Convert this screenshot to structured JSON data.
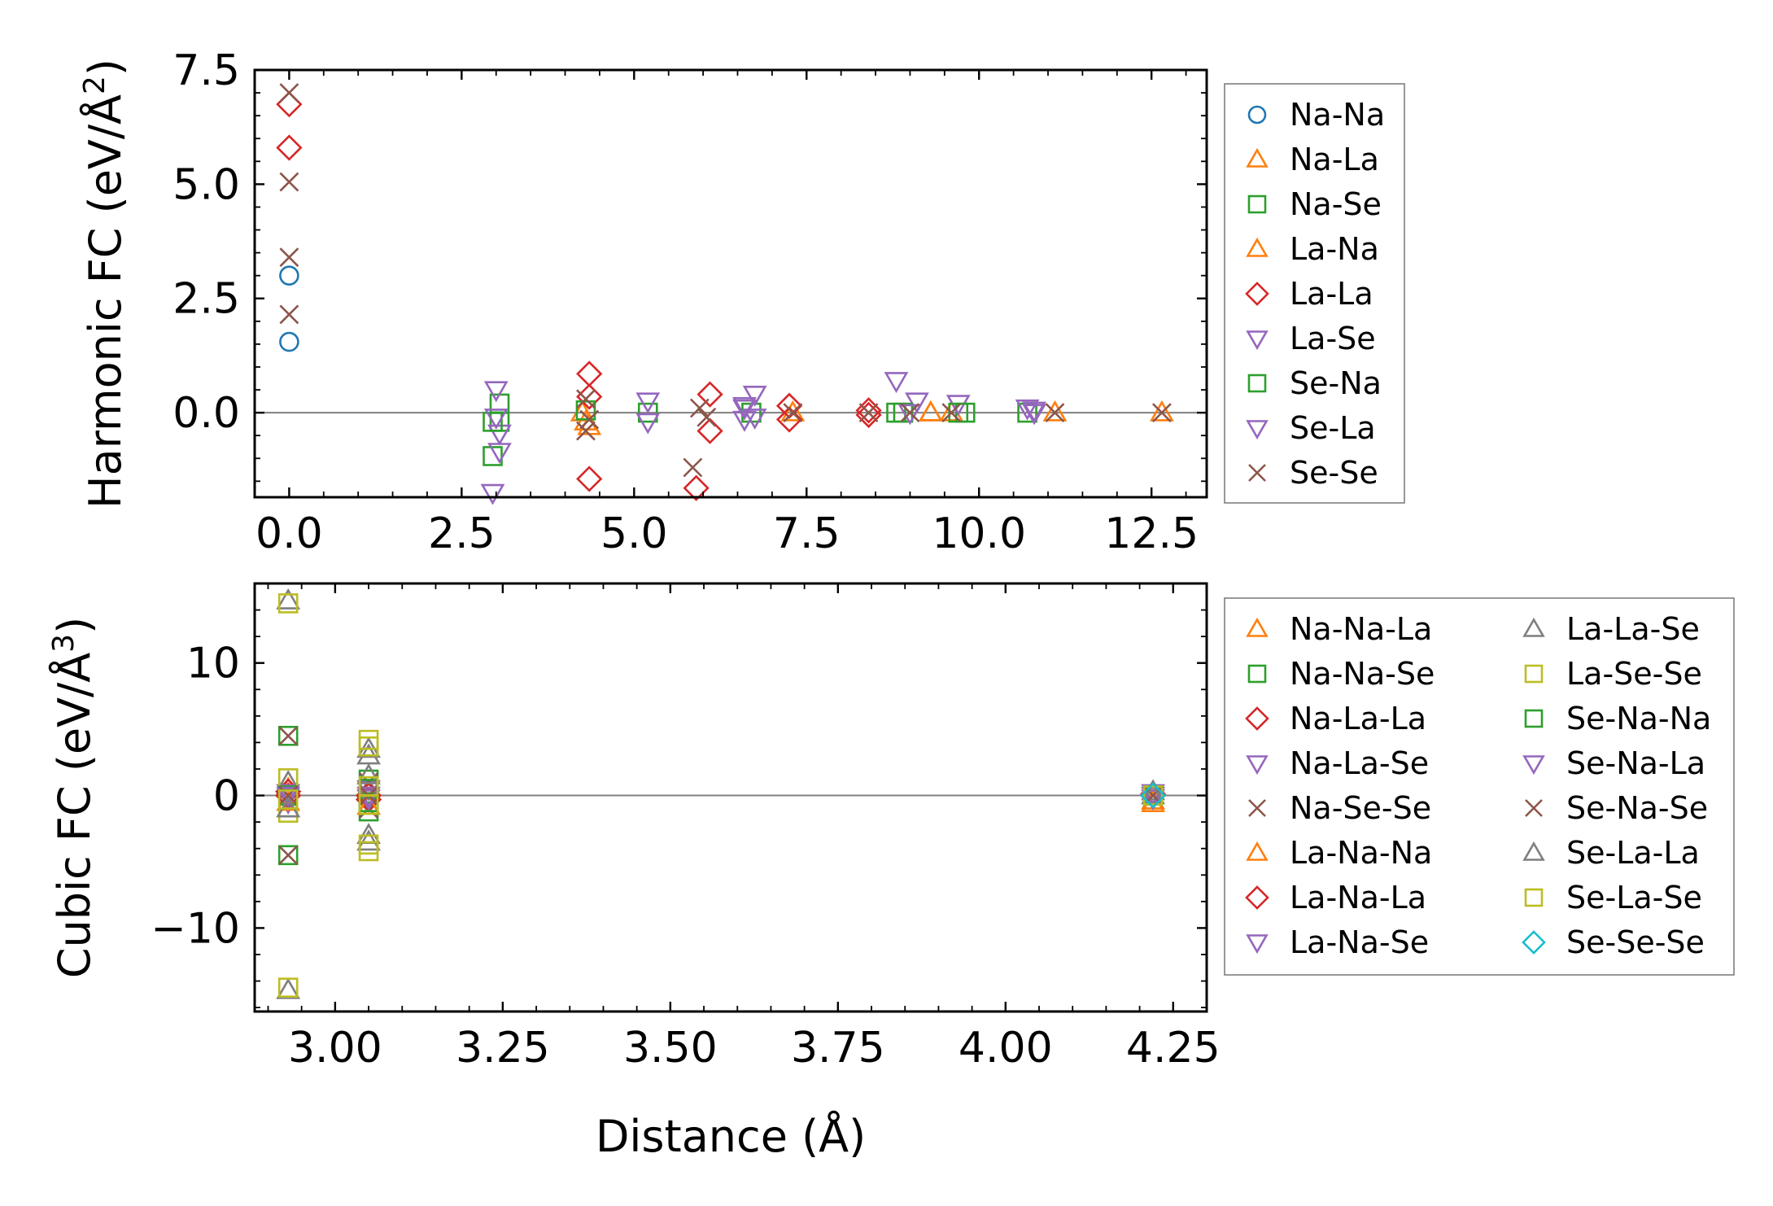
{
  "colors": {
    "tab_blue": "#1f77b4",
    "tab_orange": "#ff7f0e",
    "tab_green": "#2ca02c",
    "tab_red": "#d62728",
    "tab_purple": "#9467bd",
    "tab_brown": "#8c564b",
    "tab_gray": "#7f7f7f",
    "tab_olive": "#bcbd22",
    "tab_cyan": "#17becf",
    "zero_line": "#808080"
  },
  "chart_data": [
    {
      "type": "scatter",
      "id": "harmonic",
      "title": "",
      "xlabel": "",
      "ylabel": "Harmonic FC (eV/Å²)",
      "ylabel_parts": {
        "main": "Harmonic FC (eV/Å",
        "sup": "2",
        "end": ")"
      },
      "xlim": [
        -0.5,
        13.3
      ],
      "ylim": [
        -1.85,
        7.5
      ],
      "xticks": [
        0.0,
        2.5,
        5.0,
        7.5,
        10.0,
        12.5
      ],
      "xtick_labels": [
        "0.0",
        "2.5",
        "5.0",
        "7.5",
        "10.0",
        "12.5"
      ],
      "yticks": [
        0.0,
        2.5,
        5.0,
        7.5
      ],
      "ytick_labels": [
        "0.0",
        "2.5",
        "5.0",
        "7.5"
      ],
      "zero_line": true,
      "legend_location": "right-outside",
      "series": [
        {
          "name": "Na-Na",
          "marker": "circle",
          "color": "#1f77b4",
          "x": [
            0.0,
            0.0
          ],
          "y": [
            3.0,
            1.55
          ]
        },
        {
          "name": "Na-La",
          "marker": "triangle-up",
          "color": "#ff7f0e",
          "x": [
            4.3,
            4.35,
            9.3,
            9.6,
            11.1,
            12.65
          ],
          "y": [
            -0.2,
            -0.3,
            0.0,
            0.0,
            0.0,
            0.0
          ]
        },
        {
          "name": "Na-Se",
          "marker": "square",
          "color": "#2ca02c",
          "x": [
            2.95,
            3.05,
            3.05,
            5.2,
            6.7,
            8.8,
            9.8,
            10.7
          ],
          "y": [
            -0.95,
            0.2,
            -0.2,
            0.0,
            0.0,
            0.0,
            0.0,
            0.0
          ]
        },
        {
          "name": "La-Na",
          "marker": "triangle-up",
          "color": "#ff7f0e",
          "x": [
            4.25,
            7.3,
            9.3
          ],
          "y": [
            0.0,
            0.0,
            0.0
          ]
        },
        {
          "name": "La-La",
          "marker": "diamond",
          "color": "#d62728",
          "x": [
            0.0,
            0.0,
            4.35,
            4.35,
            4.35,
            5.9,
            6.1,
            6.1,
            7.25,
            7.25,
            8.4,
            8.4
          ],
          "y": [
            6.75,
            5.8,
            0.85,
            0.35,
            -1.45,
            -1.65,
            0.4,
            -0.4,
            0.15,
            -0.15,
            0.05,
            -0.05
          ]
        },
        {
          "name": "La-Se",
          "marker": "triangle-down",
          "color": "#9467bd",
          "x": [
            2.95,
            3.0,
            3.05,
            3.05,
            5.2,
            5.2,
            6.6,
            6.75,
            6.75,
            8.8,
            9.1,
            9.7,
            10.7,
            10.8
          ],
          "y": [
            -1.75,
            0.5,
            -0.85,
            -0.45,
            0.25,
            -0.2,
            0.15,
            0.4,
            -0.1,
            0.7,
            0.25,
            0.2,
            0.1,
            0.05
          ]
        },
        {
          "name": "Se-Na",
          "marker": "square",
          "color": "#2ca02c",
          "x": [
            2.95,
            4.3,
            8.9,
            9.7
          ],
          "y": [
            -0.2,
            0.05,
            0.0,
            0.0
          ]
        },
        {
          "name": "Se-La",
          "marker": "triangle-down",
          "color": "#9467bd",
          "x": [
            3.0,
            6.6,
            6.6,
            9.0,
            10.8
          ],
          "y": [
            -0.1,
            0.1,
            -0.15,
            0.0,
            0.0
          ]
        },
        {
          "name": "Se-Se",
          "marker": "x",
          "color": "#8c564b",
          "x": [
            0.0,
            0.0,
            0.0,
            0.0,
            4.3,
            4.3,
            4.35,
            5.85,
            5.95,
            6.05,
            7.3,
            8.4,
            9.0,
            9.6,
            11.1,
            12.65
          ],
          "y": [
            7.0,
            5.05,
            3.4,
            2.15,
            0.3,
            -0.4,
            -0.15,
            -1.2,
            0.1,
            -0.1,
            0.0,
            0.0,
            0.0,
            0.0,
            0.0,
            0.0
          ]
        }
      ]
    },
    {
      "type": "scatter",
      "id": "cubic",
      "title": "",
      "xlabel": "Distance (Å)",
      "ylabel": "Cubic FC (eV/Å³)",
      "ylabel_parts": {
        "main": "Cubic FC (eV/Å",
        "sup": "3",
        "end": ")"
      },
      "xlim": [
        2.88,
        4.3
      ],
      "ylim": [
        -16.3,
        16.0
      ],
      "xticks": [
        3.0,
        3.25,
        3.5,
        3.75,
        4.0,
        4.25
      ],
      "xtick_labels": [
        "3.00",
        "3.25",
        "3.50",
        "3.75",
        "4.00",
        "4.25"
      ],
      "yticks": [
        -10,
        0,
        10
      ],
      "ytick_labels": [
        "−10",
        "0",
        "10"
      ],
      "zero_line": true,
      "legend_location": "right-outside",
      "series": [
        {
          "name": "Na-Na-La",
          "marker": "triangle-up",
          "color": "#ff7f0e",
          "x": [
            2.93,
            3.05,
            4.22
          ],
          "y": [
            0.5,
            0.3,
            -0.4
          ]
        },
        {
          "name": "Na-Na-Se",
          "marker": "square",
          "color": "#2ca02c",
          "x": [
            2.93,
            2.93,
            3.05,
            3.05,
            4.22
          ],
          "y": [
            4.5,
            -4.5,
            1.2,
            -1.2,
            0.0
          ]
        },
        {
          "name": "Na-La-La",
          "marker": "diamond",
          "color": "#d62728",
          "x": [
            2.93,
            3.05,
            4.22
          ],
          "y": [
            0.3,
            -0.3,
            0.0
          ]
        },
        {
          "name": "Na-La-Se",
          "marker": "triangle-down",
          "color": "#9467bd",
          "x": [
            2.93,
            3.05,
            4.22
          ],
          "y": [
            -0.5,
            0.5,
            0.0
          ]
        },
        {
          "name": "Na-Se-Se",
          "marker": "x",
          "color": "#8c564b",
          "x": [
            2.93,
            2.93,
            3.05,
            3.05,
            4.22
          ],
          "y": [
            4.5,
            -4.5,
            1.0,
            -1.0,
            0.0
          ]
        },
        {
          "name": "La-Na-Na",
          "marker": "triangle-up",
          "color": "#ff7f0e",
          "x": [
            2.93,
            3.05,
            4.22
          ],
          "y": [
            -0.5,
            -0.8,
            -0.6
          ]
        },
        {
          "name": "La-Na-La",
          "marker": "diamond",
          "color": "#d62728",
          "x": [
            2.93,
            3.05,
            4.22
          ],
          "y": [
            0.0,
            0.0,
            0.1
          ]
        },
        {
          "name": "La-Na-Se",
          "marker": "triangle-down",
          "color": "#9467bd",
          "x": [
            2.93,
            3.05,
            4.22
          ],
          "y": [
            0.2,
            -0.2,
            0.2
          ]
        },
        {
          "name": "La-La-Se",
          "marker": "triangle-up",
          "color": "#7f7f7f",
          "x": [
            2.93,
            2.93,
            2.93,
            2.93,
            3.05,
            3.05,
            3.05,
            3.05,
            4.22
          ],
          "y": [
            14.7,
            -14.7,
            1.0,
            -1.0,
            3.5,
            -3.5,
            3.0,
            -3.0,
            0.3
          ]
        },
        {
          "name": "La-Se-Se",
          "marker": "square",
          "color": "#bcbd22",
          "x": [
            2.93,
            2.93,
            2.93,
            2.93,
            3.05,
            3.05,
            3.05,
            3.05,
            4.22
          ],
          "y": [
            14.5,
            -14.5,
            1.3,
            -1.3,
            4.2,
            -4.2,
            3.7,
            -3.7,
            0.0
          ]
        },
        {
          "name": "Se-Na-Na",
          "marker": "square",
          "color": "#2ca02c",
          "x": [
            2.93,
            3.05,
            3.05,
            4.22
          ],
          "y": [
            0.0,
            0.5,
            -0.5,
            0.0
          ]
        },
        {
          "name": "Se-Na-La",
          "marker": "triangle-down",
          "color": "#9467bd",
          "x": [
            2.93,
            3.05,
            4.22
          ],
          "y": [
            0.0,
            0.0,
            -0.2
          ]
        },
        {
          "name": "Se-Na-Se",
          "marker": "x",
          "color": "#8c564b",
          "x": [
            2.93,
            3.05,
            4.22
          ],
          "y": [
            0.0,
            0.0,
            0.0
          ]
        },
        {
          "name": "Se-La-La",
          "marker": "triangle-up",
          "color": "#7f7f7f",
          "x": [
            2.93,
            3.05,
            4.22
          ],
          "y": [
            -1.0,
            1.5,
            0.0
          ]
        },
        {
          "name": "Se-La-Se",
          "marker": "square",
          "color": "#bcbd22",
          "x": [
            2.93,
            3.05,
            3.05,
            4.22
          ],
          "y": [
            -0.3,
            0.7,
            -0.7,
            0.0
          ]
        },
        {
          "name": "Se-Se-Se",
          "marker": "diamond",
          "color": "#17becf",
          "x": [
            4.22
          ],
          "y": [
            0.0
          ]
        }
      ]
    }
  ]
}
